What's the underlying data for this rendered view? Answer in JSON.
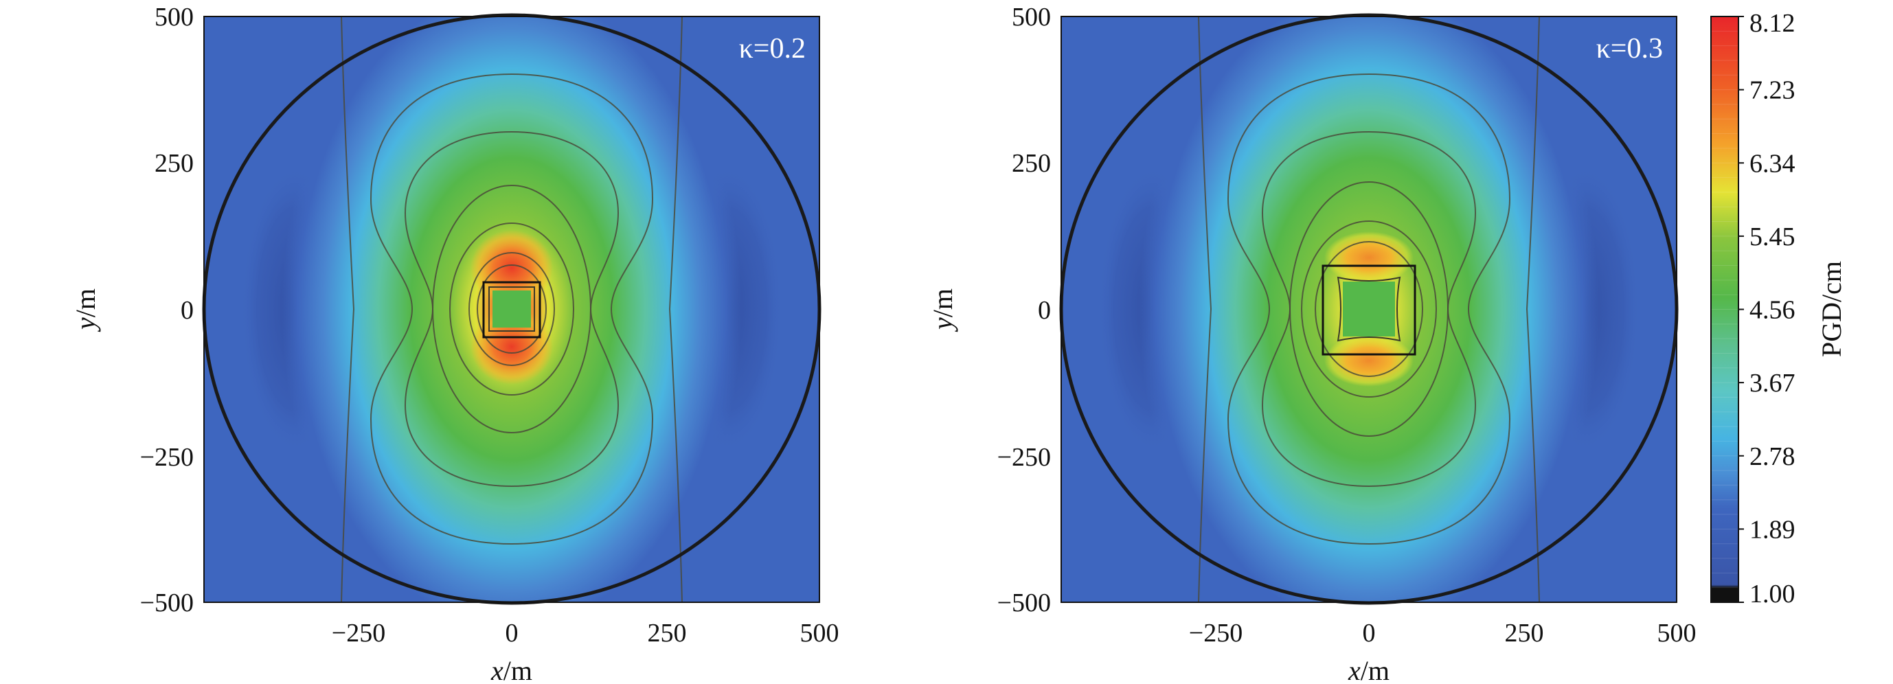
{
  "chart_data": [
    {
      "type": "heatmap",
      "annotation": "κ=0.2",
      "xlabel_var": "x",
      "xlabel_unit": "/m",
      "ylabel_var": "y",
      "ylabel_unit": "/m",
      "xlim": [
        -500,
        500
      ],
      "ylim": [
        -500,
        500
      ],
      "xticks": [
        "−250",
        "0",
        "250",
        "500"
      ],
      "yticks": [
        "500",
        "250",
        "0",
        "−250",
        "−500"
      ],
      "domain_circle_radius": 500,
      "source_square_half_width": 50,
      "peak_pgd_cm": 7.6,
      "peak_y_offset_m": 60,
      "core_pgd_cm": 4.3
    },
    {
      "type": "heatmap",
      "annotation": "κ=0.3",
      "xlabel_var": "x",
      "xlabel_unit": "/m",
      "ylabel_var": "y",
      "ylabel_unit": "/m",
      "xlim": [
        -500,
        500
      ],
      "ylim": [
        -500,
        500
      ],
      "xticks": [
        "−250",
        "0",
        "250",
        "500"
      ],
      "yticks": [
        "500",
        "250",
        "0",
        "−250",
        "−500"
      ],
      "domain_circle_radius": 500,
      "source_square_half_width": 75,
      "peak_pgd_cm": 6.9,
      "peak_y_offset_m": 85,
      "core_pgd_cm": 4.3
    }
  ],
  "colorbar": {
    "label": "PGD/cm",
    "min": 1.0,
    "max": 8.12,
    "ticks": [
      "8.12",
      "7.23",
      "6.34",
      "5.45",
      "4.56",
      "3.67",
      "2.78",
      "1.89",
      "1.00"
    ],
    "colors": [
      "#111111",
      "#3a55a8",
      "#3e66bf",
      "#47a4dc",
      "#58c9d6",
      "#5cc39a",
      "#55b84a",
      "#89c53e",
      "#e5e335",
      "#f4a32b",
      "#ef6026",
      "#e8262a"
    ]
  }
}
